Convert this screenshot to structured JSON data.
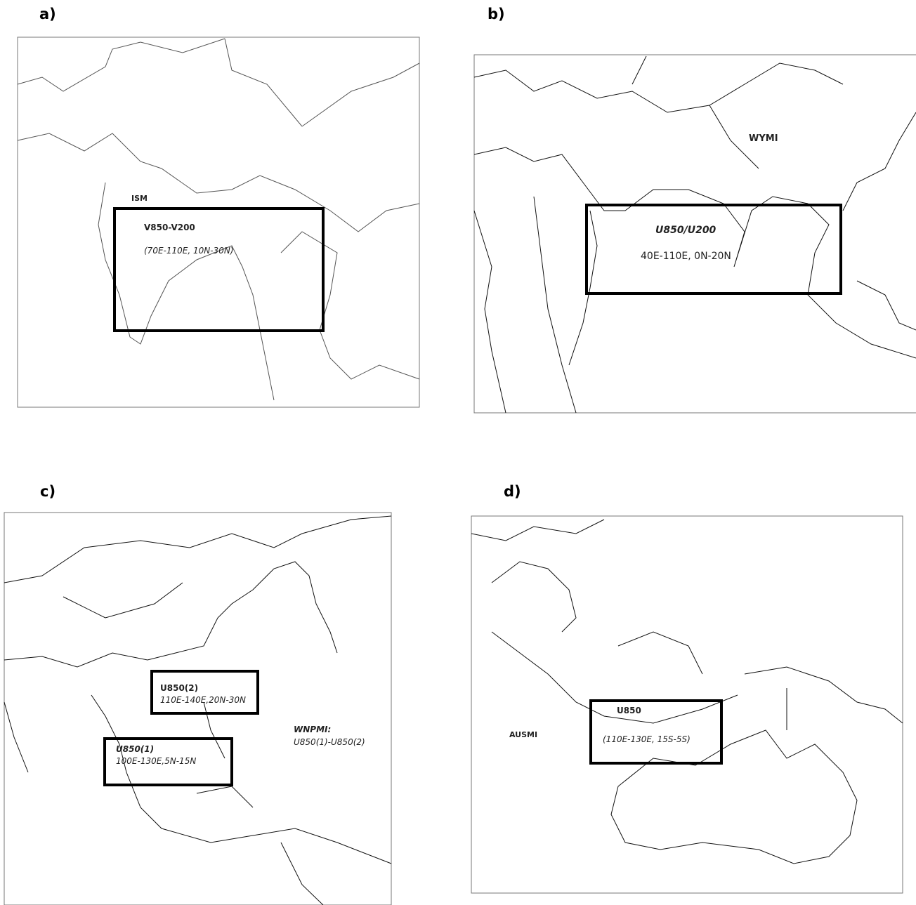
{
  "panels": [
    {
      "label": "a)",
      "index": "ISM",
      "boxes": [
        {
          "title": "V850-V200",
          "region": "(70E-110E, 10N-30N)"
        }
      ]
    },
    {
      "label": "b)",
      "index": "WYMI",
      "boxes": [
        {
          "title": "U850/U200",
          "region": "40E-110E, 0N-20N"
        }
      ]
    },
    {
      "label": "c)",
      "index": "WNPMI:",
      "formula": "U850(1)-U850(2)",
      "boxes": [
        {
          "title": "U850(2)",
          "region": "110E-140E,20N-30N"
        },
        {
          "title": "U850(1)",
          "region": "100E-130E,5N-15N"
        }
      ]
    },
    {
      "label": "d)",
      "index": "AUSMI",
      "boxes": [
        {
          "title": "U850",
          "region": "(110E-130E, 15S-5S)"
        }
      ]
    }
  ]
}
